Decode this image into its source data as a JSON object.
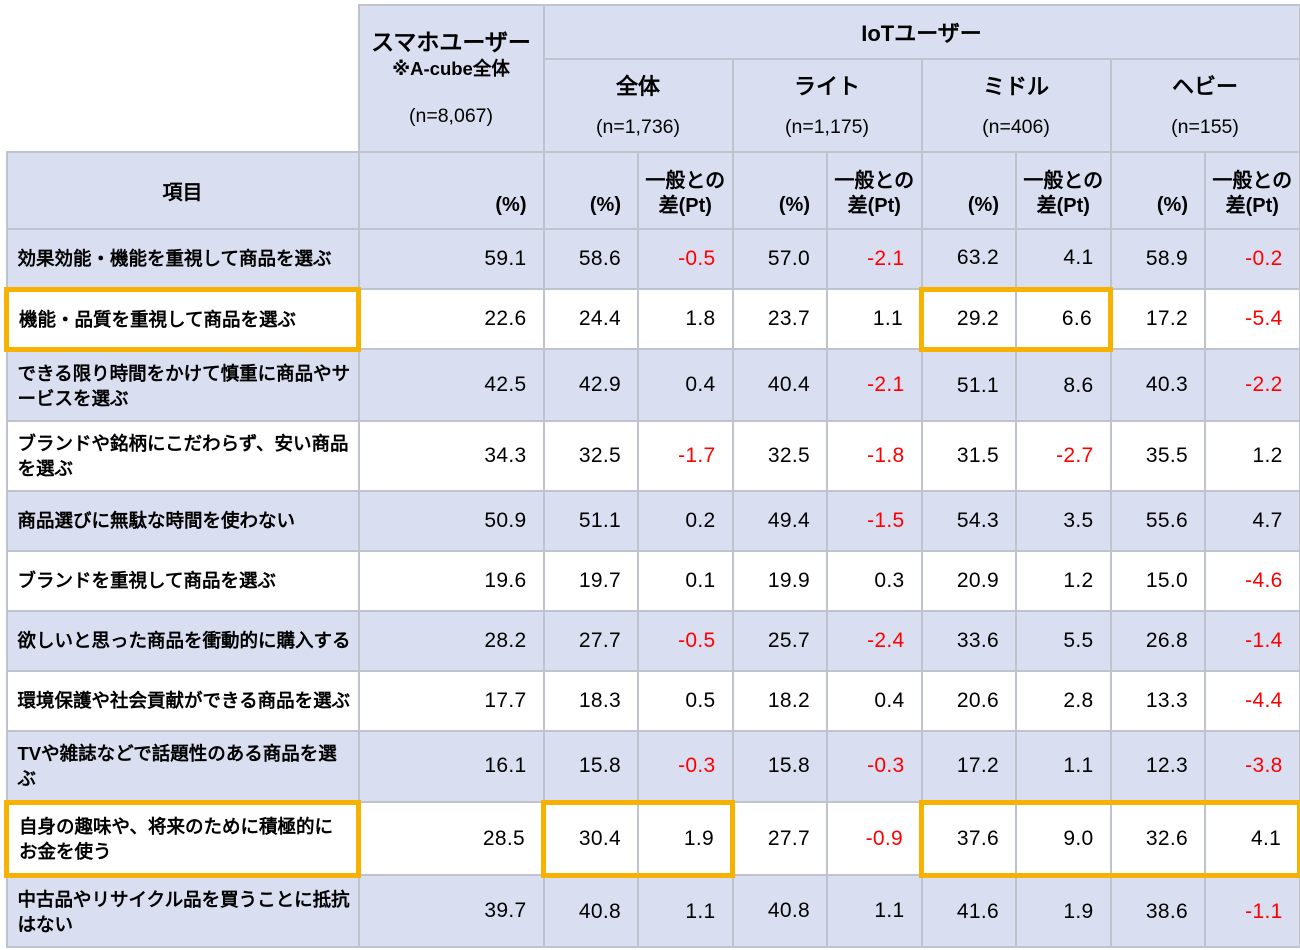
{
  "chart_data": {
    "type": "table",
    "description_note": "購買意識項目の該当率比較表",
    "column_groups": {
      "smartphone": {
        "title": "スマホユーザー",
        "subtitle": "※A-cube全体",
        "n_label": "(n=8,067)"
      },
      "iot": {
        "title": "IoTユーザー",
        "segments": [
          {
            "label": "全体",
            "n_label": "(n=1,736)"
          },
          {
            "label": "ライト",
            "n_label": "(n=1,175)"
          },
          {
            "label": "ミドル",
            "n_label": "(n=406)"
          },
          {
            "label": "ヘビー",
            "n_label": "(n=155)"
          }
        ]
      }
    },
    "subheader": {
      "item": "項目",
      "pct": "(%)",
      "diff_line1": "一般との",
      "diff_line2": "差(Pt)"
    },
    "rows": [
      {
        "label": "効果効能・機能を重視して商品を選ぶ",
        "values": [
          "59.1",
          "58.6",
          "-0.5",
          "57.0",
          "-2.1",
          "63.2",
          "4.1",
          "58.9",
          "-0.2"
        ]
      },
      {
        "label": "機能・品質を重視して商品を選ぶ",
        "values": [
          "22.6",
          "24.4",
          "1.8",
          "23.7",
          "1.1",
          "29.2",
          "6.6",
          "17.2",
          "-5.4"
        ]
      },
      {
        "label": "できる限り時間をかけて慎重に商品やサービスを選ぶ",
        "values": [
          "42.5",
          "42.9",
          "0.4",
          "40.4",
          "-2.1",
          "51.1",
          "8.6",
          "40.3",
          "-2.2"
        ]
      },
      {
        "label": "ブランドや銘柄にこだわらず、安い商品を選ぶ",
        "values": [
          "34.3",
          "32.5",
          "-1.7",
          "32.5",
          "-1.8",
          "31.5",
          "-2.7",
          "35.5",
          "1.2"
        ]
      },
      {
        "label": "商品選びに無駄な時間を使わない",
        "values": [
          "50.9",
          "51.1",
          "0.2",
          "49.4",
          "-1.5",
          "54.3",
          "3.5",
          "55.6",
          "4.7"
        ]
      },
      {
        "label": "ブランドを重視して商品を選ぶ",
        "values": [
          "19.6",
          "19.7",
          "0.1",
          "19.9",
          "0.3",
          "20.9",
          "1.2",
          "15.0",
          "-4.6"
        ]
      },
      {
        "label": "欲しいと思った商品を衝動的に購入する",
        "values": [
          "28.2",
          "27.7",
          "-0.5",
          "25.7",
          "-2.4",
          "33.6",
          "5.5",
          "26.8",
          "-1.4"
        ]
      },
      {
        "label": "環境保護や社会貢献ができる商品を選ぶ",
        "values": [
          "17.7",
          "18.3",
          "0.5",
          "18.2",
          "0.4",
          "20.6",
          "2.8",
          "13.3",
          "-4.4"
        ]
      },
      {
        "label": "TVや雑誌などで話題性のある商品を選ぶ",
        "values": [
          "16.1",
          "15.8",
          "-0.3",
          "15.8",
          "-0.3",
          "17.2",
          "1.1",
          "12.3",
          "-3.8"
        ]
      },
      {
        "label": "自身の趣味や、将来のために積極的にお金を使う",
        "values": [
          "28.5",
          "30.4",
          "1.9",
          "27.7",
          "-0.9",
          "37.6",
          "9.0",
          "32.6",
          "4.1"
        ]
      },
      {
        "label": "中古品やリサイクル品を買うことに抵抗はない",
        "values": [
          "39.7",
          "40.8",
          "1.1",
          "40.8",
          "1.1",
          "41.6",
          "1.9",
          "38.6",
          "-1.1"
        ]
      }
    ],
    "highlights": [
      {
        "row": 1,
        "target": "label"
      },
      {
        "row": 1,
        "cols": [
          5,
          6
        ]
      },
      {
        "row": 9,
        "target": "label"
      },
      {
        "row": 9,
        "cols": [
          1,
          2
        ]
      },
      {
        "row": 9,
        "cols": [
          5,
          8
        ]
      }
    ]
  },
  "colors": {
    "row_band_fill": "#dadef1",
    "grid_line": "#bfc3ce",
    "highlight_border": "#f7b200",
    "negative_value_text": "#ff0000",
    "text": "#000000",
    "background": "#ffffff"
  }
}
